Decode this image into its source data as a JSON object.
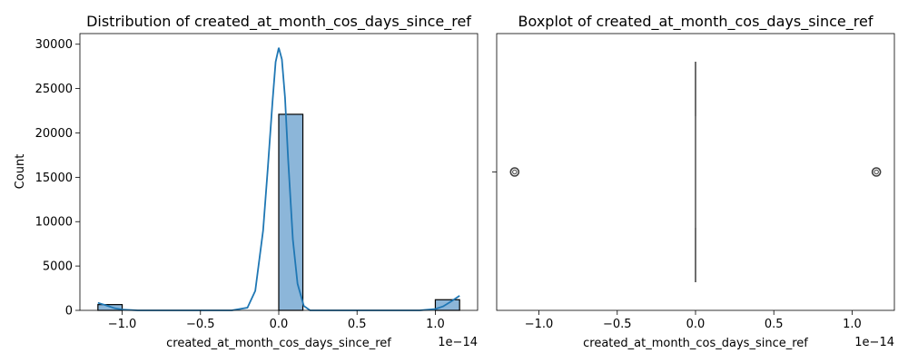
{
  "chart_data": [
    {
      "type": "histogram",
      "title": "Distribution of created_at_month_cos_days_since_ref",
      "xlabel": "created_at_month_cos_days_since_ref",
      "ylabel": "Count",
      "x_offset_label": "1e−14",
      "xlim": [
        -1.27,
        1.27
      ],
      "ylim": [
        0,
        31200
      ],
      "xticks": [
        -1.0,
        -0.5,
        0.0,
        0.5,
        1.0
      ],
      "xtick_labels": [
        "−1.0",
        "−0.5",
        "0.0",
        "0.5",
        "1.0"
      ],
      "yticks": [
        0,
        5000,
        10000,
        15000,
        20000,
        25000,
        30000
      ],
      "ytick_labels": [
        "0",
        "5000",
        "10000",
        "15000",
        "20000",
        "25000",
        "30000"
      ],
      "bins": [
        {
          "x0": -1.155,
          "x1": -1.0,
          "count": 650
        },
        {
          "x0": 0.0,
          "x1": 0.154,
          "count": 22100
        },
        {
          "x0": 1.0,
          "x1": 1.155,
          "count": 1200
        }
      ],
      "kde": {
        "x": [
          -1.155,
          -1.1,
          -1.05,
          -1.0,
          -0.9,
          -0.7,
          -0.5,
          -0.3,
          -0.2,
          -0.15,
          -0.1,
          -0.07,
          -0.04,
          -0.02,
          0.0,
          0.02,
          0.04,
          0.06,
          0.09,
          0.12,
          0.16,
          0.2,
          0.3,
          0.5,
          0.7,
          0.9,
          1.0,
          1.05,
          1.1,
          1.155
        ],
        "y": [
          850,
          550,
          250,
          90,
          0,
          0,
          0,
          0,
          300,
          2200,
          9000,
          16000,
          23500,
          28000,
          29600,
          28300,
          24000,
          17000,
          8000,
          3000,
          500,
          0,
          0,
          0,
          0,
          0,
          150,
          450,
          1000,
          1650
        ]
      },
      "bar_color": "#8cb6d9",
      "kde_color": "#1f77b4"
    },
    {
      "type": "boxplot",
      "title": "Boxplot of created_at_month_cos_days_since_ref",
      "xlabel": "created_at_month_cos_days_since_ref",
      "x_offset_label": "1e−14",
      "xlim": [
        -1.27,
        1.27
      ],
      "xticks": [
        -1.0,
        -0.5,
        0.0,
        0.5,
        1.0
      ],
      "xtick_labels": [
        "−1.0",
        "−0.5",
        "0.0",
        "0.5",
        "1.0"
      ],
      "box": {
        "q1": 0.0,
        "median": 0.0,
        "q3": 0.0,
        "whisker_low": 0.0,
        "whisker_high": 0.0
      },
      "outliers": [
        -1.155,
        1.155
      ]
    }
  ]
}
